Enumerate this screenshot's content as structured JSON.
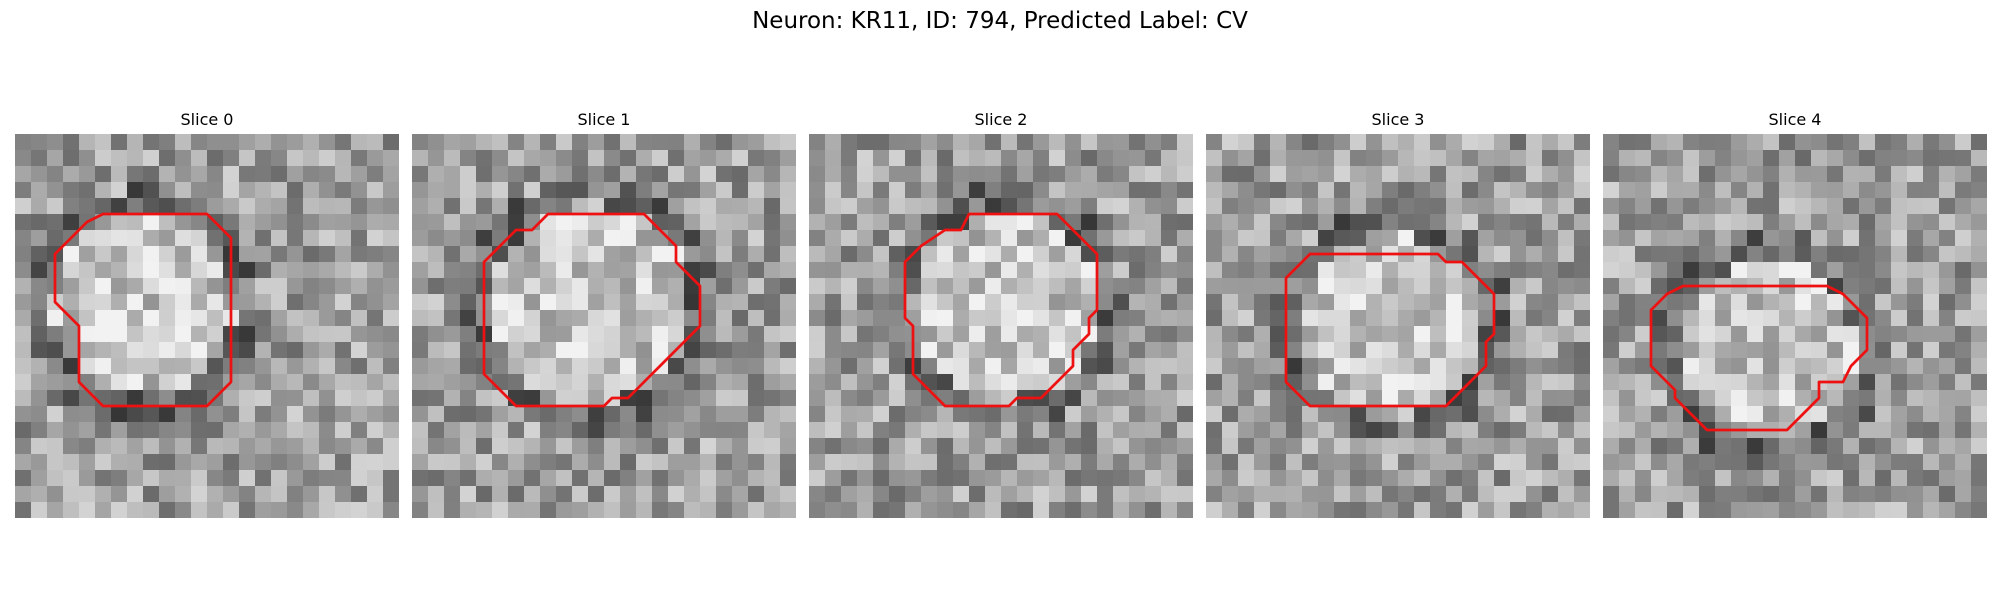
{
  "figure": {
    "title": "Neuron: KR11, ID: 794, Predicted Label: CV",
    "contour_color": "#ee1111",
    "colormap": "gray",
    "panels": [
      {
        "title": "Slice 0",
        "contour": [
          [
            6.5,
            5.0
          ],
          [
            12.0,
            5.0
          ],
          [
            13.0,
            6.0
          ],
          [
            13.5,
            6.5
          ],
          [
            13.5,
            15.5
          ],
          [
            12.5,
            16.5
          ],
          [
            12.0,
            17.0
          ],
          [
            5.5,
            17.0
          ],
          [
            4.5,
            16.0
          ],
          [
            4.0,
            15.5
          ],
          [
            4.0,
            12.0
          ],
          [
            3.0,
            11.0
          ],
          [
            2.5,
            10.5
          ],
          [
            2.5,
            7.5
          ],
          [
            3.5,
            6.5
          ],
          [
            4.5,
            5.5
          ],
          [
            5.5,
            5.0
          ]
        ]
      },
      {
        "title": "Slice 1",
        "contour": [
          [
            8.5,
            5.0
          ],
          [
            14.5,
            5.0
          ],
          [
            15.5,
            6.0
          ],
          [
            16.5,
            7.0
          ],
          [
            16.5,
            8.0
          ],
          [
            17.5,
            9.0
          ],
          [
            18.0,
            9.5
          ],
          [
            18.0,
            12.0
          ],
          [
            17.0,
            13.0
          ],
          [
            15.5,
            14.5
          ],
          [
            14.5,
            15.5
          ],
          [
            13.5,
            16.5
          ],
          [
            12.5,
            16.5
          ],
          [
            12.0,
            17.0
          ],
          [
            6.5,
            17.0
          ],
          [
            5.5,
            16.0
          ],
          [
            4.5,
            15.0
          ],
          [
            4.5,
            8.0
          ],
          [
            5.5,
            7.0
          ],
          [
            6.5,
            6.0
          ],
          [
            7.5,
            6.0
          ]
        ]
      },
      {
        "title": "Slice 2",
        "contour": [
          [
            10.0,
            5.0
          ],
          [
            15.5,
            5.0
          ],
          [
            16.5,
            6.0
          ],
          [
            17.5,
            7.0
          ],
          [
            18.0,
            7.5
          ],
          [
            18.0,
            11.0
          ],
          [
            17.5,
            11.5
          ],
          [
            17.5,
            12.5
          ],
          [
            16.5,
            13.5
          ],
          [
            16.5,
            14.5
          ],
          [
            15.0,
            16.0
          ],
          [
            14.5,
            16.5
          ],
          [
            13.0,
            16.5
          ],
          [
            12.5,
            17.0
          ],
          [
            8.5,
            17.0
          ],
          [
            7.5,
            16.0
          ],
          [
            6.5,
            15.0
          ],
          [
            6.5,
            12.0
          ],
          [
            6.0,
            11.5
          ],
          [
            6.0,
            8.0
          ],
          [
            7.0,
            7.0
          ],
          [
            8.5,
            6.0
          ],
          [
            9.5,
            6.0
          ]
        ]
      },
      {
        "title": "Slice 3",
        "contour": [
          [
            7.5,
            7.5
          ],
          [
            14.5,
            7.5
          ],
          [
            15.0,
            8.0
          ],
          [
            16.0,
            8.0
          ],
          [
            17.0,
            9.0
          ],
          [
            18.0,
            10.0
          ],
          [
            18.0,
            12.5
          ],
          [
            17.5,
            13.0
          ],
          [
            17.5,
            14.5
          ],
          [
            16.5,
            15.5
          ],
          [
            15.5,
            16.5
          ],
          [
            15.0,
            17.0
          ],
          [
            14.5,
            17.0
          ],
          [
            6.5,
            17.0
          ],
          [
            5.5,
            16.0
          ],
          [
            5.0,
            15.5
          ],
          [
            5.0,
            9.0
          ],
          [
            5.5,
            8.5
          ],
          [
            6.5,
            7.5
          ]
        ]
      },
      {
        "title": "Slice 4",
        "contour": [
          [
            7.5,
            9.5
          ],
          [
            14.0,
            9.5
          ],
          [
            15.0,
            10.0
          ],
          [
            16.0,
            11.0
          ],
          [
            16.5,
            11.5
          ],
          [
            16.5,
            13.5
          ],
          [
            15.5,
            14.5
          ],
          [
            15.0,
            15.5
          ],
          [
            13.5,
            15.5
          ],
          [
            13.5,
            16.5
          ],
          [
            12.5,
            17.5
          ],
          [
            11.5,
            18.5
          ],
          [
            6.5,
            18.5
          ],
          [
            5.5,
            17.5
          ],
          [
            4.5,
            16.5
          ],
          [
            4.5,
            16.0
          ],
          [
            3.5,
            15.0
          ],
          [
            3.0,
            14.5
          ],
          [
            3.0,
            11.0
          ],
          [
            4.0,
            10.0
          ],
          [
            5.0,
            9.5
          ],
          [
            6.0,
            9.5
          ]
        ]
      }
    ]
  }
}
